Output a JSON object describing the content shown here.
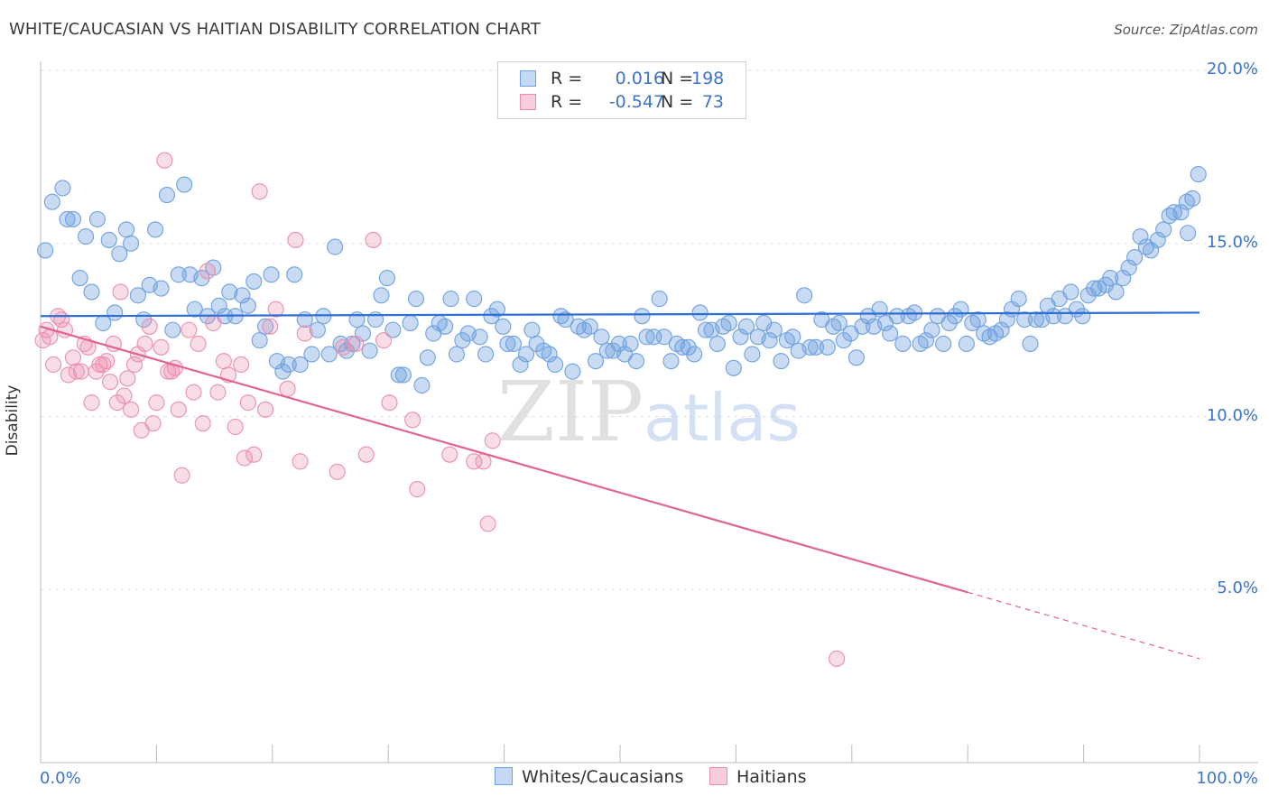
{
  "title": "WHITE/CAUCASIAN VS HAITIAN DISABILITY CORRELATION CHART",
  "source": "Source: ZipAtlas.com",
  "watermark": {
    "zip": "ZIP",
    "atlas": "atlas"
  },
  "legend": {
    "rows": [
      {
        "r_label": "R =",
        "r_value": "0.016",
        "n_label": "N =",
        "n_value": "198",
        "color": "#6fa1e0"
      },
      {
        "r_label": "R =",
        "r_value": "-0.547",
        "n_label": "N =",
        "n_value": "73",
        "color": "#ec8fad"
      }
    ]
  },
  "bottom_legend": [
    {
      "label": "Whites/Caucasians",
      "color": "#6fa1e0"
    },
    {
      "label": "Haitians",
      "color": "#ec8fad"
    }
  ],
  "chart_data": {
    "type": "scatter",
    "title": "WHITE/CAUCASIAN VS HAITIAN DISABILITY CORRELATION CHART",
    "ylabel": "Disability",
    "xlabel": "",
    "xlim": [
      0,
      100
    ],
    "ylim": [
      0,
      20
    ],
    "y_ticks": [
      {
        "value": 5,
        "label": "5.0%"
      },
      {
        "value": 10,
        "label": "10.0%"
      },
      {
        "value": 15,
        "label": "15.0%"
      },
      {
        "value": 20,
        "label": "20.0%"
      }
    ],
    "x_ticks": [
      {
        "value": 0,
        "label": "0.0%"
      },
      {
        "value": 100,
        "label": "100.0%"
      }
    ],
    "grid": "horizontal dashed",
    "legend_position": "top-center",
    "series": [
      {
        "name": "Whites/Caucasians",
        "color": "#6fa1e0",
        "trend": {
          "x": [
            0,
            100
          ],
          "y": [
            12.9,
            13.0
          ],
          "dashed_from": null
        },
        "points": [
          [
            0.4,
            14.8
          ],
          [
            1.0,
            16.2
          ],
          [
            1.9,
            16.6
          ],
          [
            2.3,
            15.7
          ],
          [
            2.8,
            15.7
          ],
          [
            3.4,
            14.0
          ],
          [
            3.9,
            15.2
          ],
          [
            4.4,
            13.6
          ],
          [
            4.9,
            15.7
          ],
          [
            5.4,
            12.7
          ],
          [
            5.9,
            15.1
          ],
          [
            6.4,
            13.0
          ],
          [
            6.8,
            14.7
          ],
          [
            7.4,
            15.4
          ],
          [
            7.8,
            15.0
          ],
          [
            8.4,
            13.5
          ],
          [
            8.9,
            12.8
          ],
          [
            9.4,
            13.8
          ],
          [
            9.9,
            15.4
          ],
          [
            10.4,
            13.7
          ],
          [
            10.9,
            16.4
          ],
          [
            11.4,
            12.5
          ],
          [
            11.9,
            14.1
          ],
          [
            12.4,
            16.7
          ],
          [
            12.9,
            14.1
          ],
          [
            13.3,
            13.1
          ],
          [
            13.9,
            14.0
          ],
          [
            14.4,
            12.9
          ],
          [
            14.9,
            14.3
          ],
          [
            15.4,
            13.2
          ],
          [
            15.9,
            12.9
          ],
          [
            16.3,
            13.6
          ],
          [
            16.8,
            12.9
          ],
          [
            17.4,
            13.5
          ],
          [
            17.9,
            13.2
          ],
          [
            18.4,
            13.9
          ],
          [
            18.9,
            12.2
          ],
          [
            19.4,
            12.6
          ],
          [
            19.9,
            14.1
          ],
          [
            20.4,
            11.6
          ],
          [
            20.9,
            11.3
          ],
          [
            21.4,
            11.5
          ],
          [
            21.9,
            14.1
          ],
          [
            22.4,
            11.5
          ],
          [
            22.8,
            12.8
          ],
          [
            23.4,
            11.8
          ],
          [
            23.9,
            12.5
          ],
          [
            24.4,
            12.9
          ],
          [
            24.9,
            11.8
          ],
          [
            25.4,
            14.9
          ],
          [
            25.9,
            12.1
          ],
          [
            26.4,
            11.9
          ],
          [
            26.9,
            12.1
          ],
          [
            27.3,
            12.8
          ],
          [
            27.8,
            12.4
          ],
          [
            28.4,
            11.9
          ],
          [
            28.9,
            12.8
          ],
          [
            29.4,
            13.5
          ],
          [
            29.9,
            14.0
          ],
          [
            30.4,
            12.5
          ],
          [
            30.9,
            11.2
          ],
          [
            31.3,
            11.2
          ],
          [
            31.9,
            12.7
          ],
          [
            32.4,
            13.4
          ],
          [
            32.9,
            10.9
          ],
          [
            33.4,
            11.7
          ],
          [
            33.9,
            12.4
          ],
          [
            34.4,
            12.7
          ],
          [
            34.9,
            12.6
          ],
          [
            35.4,
            13.4
          ],
          [
            35.9,
            11.8
          ],
          [
            36.4,
            12.2
          ],
          [
            36.9,
            12.4
          ],
          [
            37.4,
            13.4
          ],
          [
            37.9,
            12.3
          ],
          [
            38.4,
            11.8
          ],
          [
            38.9,
            12.9
          ],
          [
            39.4,
            13.1
          ],
          [
            39.9,
            12.6
          ],
          [
            40.3,
            12.1
          ],
          [
            40.8,
            12.1
          ],
          [
            41.4,
            11.5
          ],
          [
            41.9,
            11.8
          ],
          [
            42.4,
            12.5
          ],
          [
            42.8,
            12.1
          ],
          [
            43.4,
            11.9
          ],
          [
            43.9,
            11.8
          ],
          [
            44.4,
            11.5
          ],
          [
            44.9,
            12.9
          ],
          [
            45.3,
            12.8
          ],
          [
            45.9,
            11.3
          ],
          [
            46.4,
            12.6
          ],
          [
            46.9,
            12.5
          ],
          [
            47.4,
            12.6
          ],
          [
            47.9,
            11.6
          ],
          [
            48.4,
            12.3
          ],
          [
            48.9,
            11.9
          ],
          [
            49.4,
            11.9
          ],
          [
            49.9,
            12.1
          ],
          [
            50.4,
            11.8
          ],
          [
            50.9,
            12.1
          ],
          [
            51.4,
            11.6
          ],
          [
            51.9,
            12.9
          ],
          [
            52.3,
            12.3
          ],
          [
            52.9,
            12.3
          ],
          [
            53.4,
            13.4
          ],
          [
            53.8,
            12.3
          ],
          [
            54.4,
            11.6
          ],
          [
            54.9,
            12.1
          ],
          [
            55.4,
            12.0
          ],
          [
            55.9,
            12.0
          ],
          [
            56.4,
            11.8
          ],
          [
            56.9,
            13.0
          ],
          [
            57.4,
            12.5
          ],
          [
            57.9,
            12.5
          ],
          [
            58.4,
            12.1
          ],
          [
            58.9,
            12.6
          ],
          [
            59.4,
            12.7
          ],
          [
            59.8,
            11.4
          ],
          [
            60.4,
            12.3
          ],
          [
            60.9,
            12.6
          ],
          [
            61.4,
            11.8
          ],
          [
            61.9,
            12.3
          ],
          [
            62.4,
            12.7
          ],
          [
            62.9,
            12.2
          ],
          [
            63.3,
            12.5
          ],
          [
            63.9,
            11.6
          ],
          [
            64.4,
            12.2
          ],
          [
            64.9,
            12.3
          ],
          [
            65.4,
            11.9
          ],
          [
            65.9,
            13.5
          ],
          [
            66.4,
            12.0
          ],
          [
            66.9,
            12.0
          ],
          [
            67.4,
            12.8
          ],
          [
            67.9,
            12.0
          ],
          [
            68.4,
            12.6
          ],
          [
            68.9,
            12.7
          ],
          [
            69.3,
            12.2
          ],
          [
            69.9,
            12.4
          ],
          [
            70.4,
            11.7
          ],
          [
            70.9,
            12.6
          ],
          [
            71.4,
            12.9
          ],
          [
            71.9,
            12.6
          ],
          [
            72.4,
            13.1
          ],
          [
            72.9,
            12.7
          ],
          [
            73.3,
            12.4
          ],
          [
            73.9,
            12.9
          ],
          [
            74.4,
            12.1
          ],
          [
            74.9,
            12.9
          ],
          [
            75.4,
            13.0
          ],
          [
            75.9,
            12.1
          ],
          [
            76.4,
            12.2
          ],
          [
            76.9,
            12.5
          ],
          [
            77.4,
            12.9
          ],
          [
            77.9,
            12.1
          ],
          [
            78.4,
            12.7
          ],
          [
            78.9,
            12.9
          ],
          [
            79.4,
            13.1
          ],
          [
            79.9,
            12.1
          ],
          [
            80.4,
            12.7
          ],
          [
            80.9,
            12.8
          ],
          [
            81.4,
            12.4
          ],
          [
            81.9,
            12.3
          ],
          [
            82.4,
            12.4
          ],
          [
            82.9,
            12.5
          ],
          [
            83.4,
            12.8
          ],
          [
            83.8,
            13.1
          ],
          [
            84.4,
            13.4
          ],
          [
            84.9,
            12.8
          ],
          [
            85.4,
            12.1
          ],
          [
            85.9,
            12.8
          ],
          [
            86.4,
            12.8
          ],
          [
            86.9,
            13.2
          ],
          [
            87.4,
            12.9
          ],
          [
            87.9,
            13.4
          ],
          [
            88.4,
            12.9
          ],
          [
            88.9,
            13.6
          ],
          [
            89.4,
            13.1
          ],
          [
            89.9,
            12.9
          ],
          [
            90.4,
            13.5
          ],
          [
            90.9,
            13.7
          ],
          [
            91.3,
            13.7
          ],
          [
            91.9,
            13.8
          ],
          [
            92.3,
            14.0
          ],
          [
            92.8,
            13.6
          ],
          [
            93.4,
            14.0
          ],
          [
            93.9,
            14.3
          ],
          [
            94.4,
            14.6
          ],
          [
            94.9,
            15.2
          ],
          [
            95.4,
            14.9
          ],
          [
            95.8,
            14.8
          ],
          [
            96.4,
            15.1
          ],
          [
            96.9,
            15.4
          ],
          [
            97.4,
            15.8
          ],
          [
            97.8,
            15.9
          ],
          [
            98.4,
            15.9
          ],
          [
            98.9,
            16.2
          ],
          [
            99.4,
            16.3
          ],
          [
            99.9,
            17.0
          ],
          [
            99.0,
            15.3
          ]
        ]
      },
      {
        "name": "Haitians",
        "color": "#ec8fad",
        "trend": {
          "x": [
            0,
            100
          ],
          "y": [
            12.6,
            3.0
          ],
          "dashed_from": 80
        },
        "points": [
          [
            0.2,
            12.2
          ],
          [
            0.5,
            12.5
          ],
          [
            0.8,
            12.3
          ],
          [
            1.1,
            11.5
          ],
          [
            1.5,
            12.9
          ],
          [
            1.8,
            12.8
          ],
          [
            2.1,
            12.5
          ],
          [
            2.4,
            11.2
          ],
          [
            2.8,
            11.7
          ],
          [
            3.1,
            11.3
          ],
          [
            3.5,
            11.3
          ],
          [
            3.8,
            12.1
          ],
          [
            4.1,
            12.0
          ],
          [
            4.4,
            10.4
          ],
          [
            4.8,
            11.3
          ],
          [
            5.1,
            11.5
          ],
          [
            5.4,
            11.5
          ],
          [
            5.7,
            11.6
          ],
          [
            6.0,
            11.0
          ],
          [
            6.3,
            12.1
          ],
          [
            6.6,
            10.4
          ],
          [
            6.9,
            13.6
          ],
          [
            7.2,
            10.6
          ],
          [
            7.5,
            11.1
          ],
          [
            7.8,
            10.2
          ],
          [
            8.1,
            11.5
          ],
          [
            8.4,
            11.8
          ],
          [
            8.7,
            9.6
          ],
          [
            9.0,
            12.1
          ],
          [
            9.4,
            12.6
          ],
          [
            9.7,
            9.8
          ],
          [
            10.0,
            10.4
          ],
          [
            10.4,
            12.0
          ],
          [
            10.7,
            17.4
          ],
          [
            11.0,
            11.3
          ],
          [
            11.3,
            11.3
          ],
          [
            11.6,
            11.4
          ],
          [
            11.9,
            10.2
          ],
          [
            12.2,
            8.3
          ],
          [
            12.8,
            12.5
          ],
          [
            13.2,
            10.7
          ],
          [
            13.6,
            12.1
          ],
          [
            14.0,
            9.8
          ],
          [
            14.4,
            14.2
          ],
          [
            14.9,
            12.7
          ],
          [
            15.3,
            10.7
          ],
          [
            15.8,
            11.6
          ],
          [
            16.2,
            11.2
          ],
          [
            16.8,
            9.7
          ],
          [
            17.3,
            11.5
          ],
          [
            17.6,
            8.8
          ],
          [
            17.9,
            10.4
          ],
          [
            18.4,
            8.9
          ],
          [
            18.9,
            16.5
          ],
          [
            19.4,
            10.2
          ],
          [
            19.8,
            12.6
          ],
          [
            20.3,
            13.1
          ],
          [
            21.3,
            10.8
          ],
          [
            22.0,
            15.1
          ],
          [
            22.8,
            12.4
          ],
          [
            22.4,
            8.7
          ],
          [
            25.6,
            8.4
          ],
          [
            26.1,
            12.0
          ],
          [
            27.2,
            12.1
          ],
          [
            28.1,
            8.9
          ],
          [
            28.7,
            15.1
          ],
          [
            29.6,
            12.2
          ],
          [
            30.1,
            10.4
          ],
          [
            32.1,
            9.9
          ],
          [
            32.5,
            7.9
          ],
          [
            35.3,
            8.9
          ],
          [
            37.4,
            8.7
          ],
          [
            38.2,
            8.7
          ],
          [
            38.6,
            6.9
          ],
          [
            39.0,
            9.3
          ],
          [
            68.7,
            3.0
          ]
        ]
      }
    ]
  }
}
